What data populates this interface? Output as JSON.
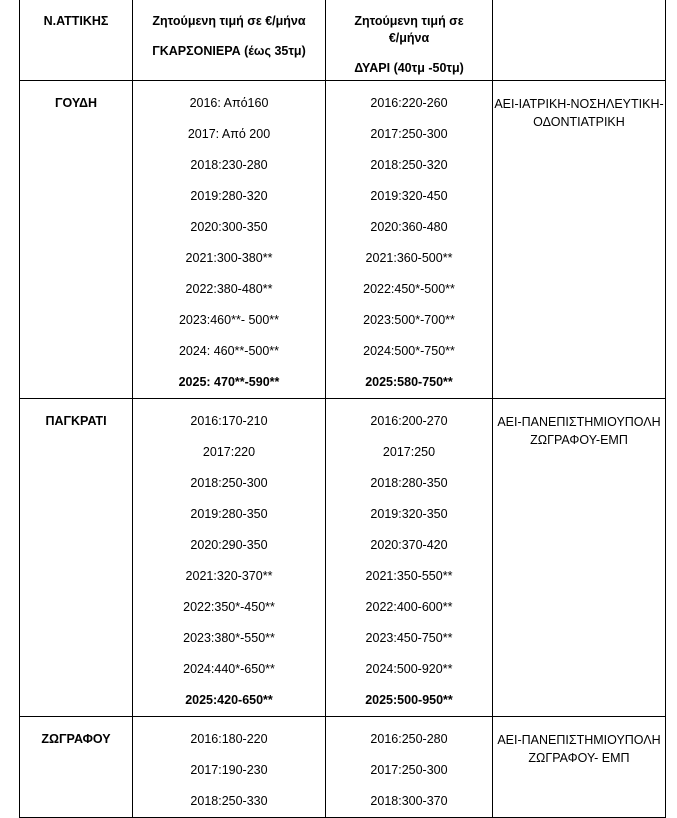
{
  "header": {
    "col1": "Ν.ΑΤΤΙΚΗΣ",
    "col2_line1": "Ζητούμενη τιμή σε €/μήνα",
    "col2_line2": "ΓΚΑΡΣΟΝΙΕΡΑ (έως 35τμ)",
    "col3_line1": "Ζητούμενη τιμή σε",
    "col3_line2": "€/μήνα",
    "col3_line3": "ΔΥΑΡΙ (40τμ -50τμ)",
    "col4": ""
  },
  "rows": [
    {
      "area": "ΓΟΥΔΗ",
      "studio": [
        "2016: Από160",
        "2017: Από 200",
        "2018:230-280",
        "2019:280-320",
        "2020:300-350",
        "2021:300-380**",
        "2022:380-480**",
        "2023:460**- 500**",
        "2024: 460**-500**",
        "2025: 470**-590**"
      ],
      "two_room": [
        "2016:220-260",
        "2017:250-300",
        "2018:250-320",
        "2019:320-450",
        "2020:360-480",
        "2021:360-500**",
        "2022:450*-500**",
        "2023:500*-700**",
        "2024:500*-750**",
        "2025:580-750**"
      ],
      "university": [
        "ΑΕΙ-ΙΑΤΡΙΚΗ-ΝΟΣΗΛΕΥΤΙΚΗ-",
        "ΟΔΟΝΤΙΑΤΡΙΚΗ"
      ]
    },
    {
      "area": "ΠΑΓΚΡΑΤΙ",
      "studio": [
        "2016:170-210",
        "2017:220",
        "2018:250-300",
        "2019:280-350",
        "2020:290-350",
        "2021:320-370**",
        "2022:350*-450**",
        "2023:380*-550**",
        "2024:440*-650**",
        "2025:420-650**"
      ],
      "two_room": [
        "2016:200-270",
        "2017:250",
        "2018:280-350",
        "2019:320-350",
        "2020:370-420",
        "2021:350-550**",
        "2022:400-600**",
        "2023:450-750**",
        "2024:500-920**",
        "2025:500-950**"
      ],
      "university": [
        "ΑΕΙ-ΠΑΝΕΠΙΣΤΗΜΙΟΥΠΟΛΗ",
        "ΖΩΓΡΑΦΟΥ-ΕΜΠ"
      ]
    },
    {
      "area": "ΖΩΓΡΑΦΟΥ",
      "studio": [
        "2016:180-220",
        "2017:190-230",
        "2018:250-330"
      ],
      "two_room": [
        "2016:250-280",
        "2017:250-300",
        "2018:300-370"
      ],
      "university": [
        "ΑΕΙ-ΠΑΝΕΠΙΣΤΗΜΙΟΥΠΟΛΗ",
        "ΖΩΓΡΑΦΟΥ- ΕΜΠ"
      ]
    }
  ]
}
